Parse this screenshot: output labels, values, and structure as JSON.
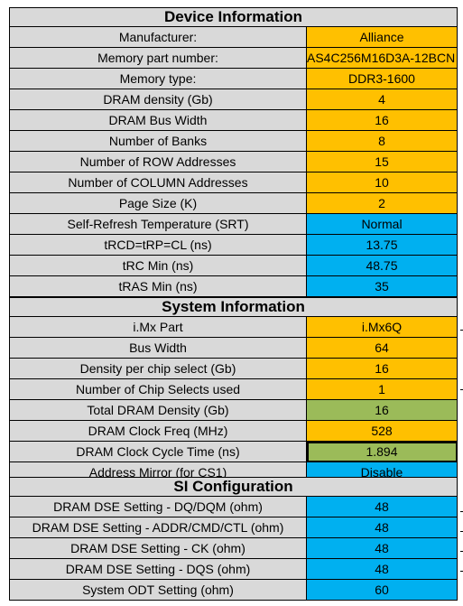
{
  "colors": {
    "header": "#d9d9d9",
    "label": "#d9d9d9",
    "orange": "#ffc000",
    "blue": "#00b0f0",
    "green": "#9bbb59"
  },
  "sections": [
    {
      "title": "Device Information",
      "rows": [
        {
          "label": "Manufacturer:",
          "value": "Alliance",
          "color": "orange"
        },
        {
          "label": "Memory part number:",
          "value": "AS4C256M16D3A-12BCN",
          "color": "orange"
        },
        {
          "label": "Memory type:",
          "value": "DDR3-1600",
          "color": "orange"
        },
        {
          "label": "DRAM density (Gb)",
          "value": "4",
          "color": "orange"
        },
        {
          "label": "DRAM Bus Width",
          "value": "16",
          "color": "orange"
        },
        {
          "label": "Number of Banks",
          "value": "8",
          "color": "orange"
        },
        {
          "label": "Number of ROW Addresses",
          "value": "15",
          "color": "orange"
        },
        {
          "label": "Number of COLUMN Addresses",
          "value": "10",
          "color": "orange"
        },
        {
          "label": "Page Size (K)",
          "value": "2",
          "color": "orange"
        },
        {
          "label": "Self-Refresh Temperature (SRT)",
          "value": "Normal",
          "color": "blue"
        },
        {
          "label": "tRCD=tRP=CL (ns)",
          "value": "13.75",
          "color": "blue"
        },
        {
          "label": "tRC Min (ns)",
          "value": "48.75",
          "color": "blue"
        },
        {
          "label": "tRAS Min (ns)",
          "value": "35",
          "color": "blue"
        }
      ]
    },
    {
      "title": "System Information",
      "rows": [
        {
          "label": "i.Mx Part",
          "value": "i.Mx6Q",
          "color": "orange"
        },
        {
          "label": "Bus Width",
          "value": "64",
          "color": "orange"
        },
        {
          "label": "Density per chip select (Gb)",
          "value": "16",
          "color": "orange"
        },
        {
          "label": "Number of Chip Selects used",
          "value": "1",
          "color": "orange"
        },
        {
          "label": "Total DRAM Density (Gb)",
          "value": "16",
          "color": "green"
        },
        {
          "label": "DRAM Clock Freq (MHz)",
          "value": "528",
          "color": "orange"
        },
        {
          "label": "DRAM Clock Cycle Time (ns)",
          "value": "1.894",
          "color": "green"
        },
        {
          "label": "Address Mirror (for CS1)",
          "value": "Disable",
          "color": "blue"
        }
      ]
    },
    {
      "title": "SI Configuration",
      "rows": [
        {
          "label": "DRAM DSE Setting - DQ/DQM (ohm)",
          "value": "48",
          "color": "blue"
        },
        {
          "label": "DRAM DSE Setting - ADDR/CMD/CTL (ohm)",
          "value": "48",
          "color": "blue"
        },
        {
          "label": "DRAM DSE Setting - CK (ohm)",
          "value": "48",
          "color": "blue"
        },
        {
          "label": "DRAM DSE Setting - DQS (ohm)",
          "value": "48",
          "color": "blue"
        },
        {
          "label": "System ODT Setting (ohm)",
          "value": "60",
          "color": "blue"
        }
      ]
    }
  ]
}
